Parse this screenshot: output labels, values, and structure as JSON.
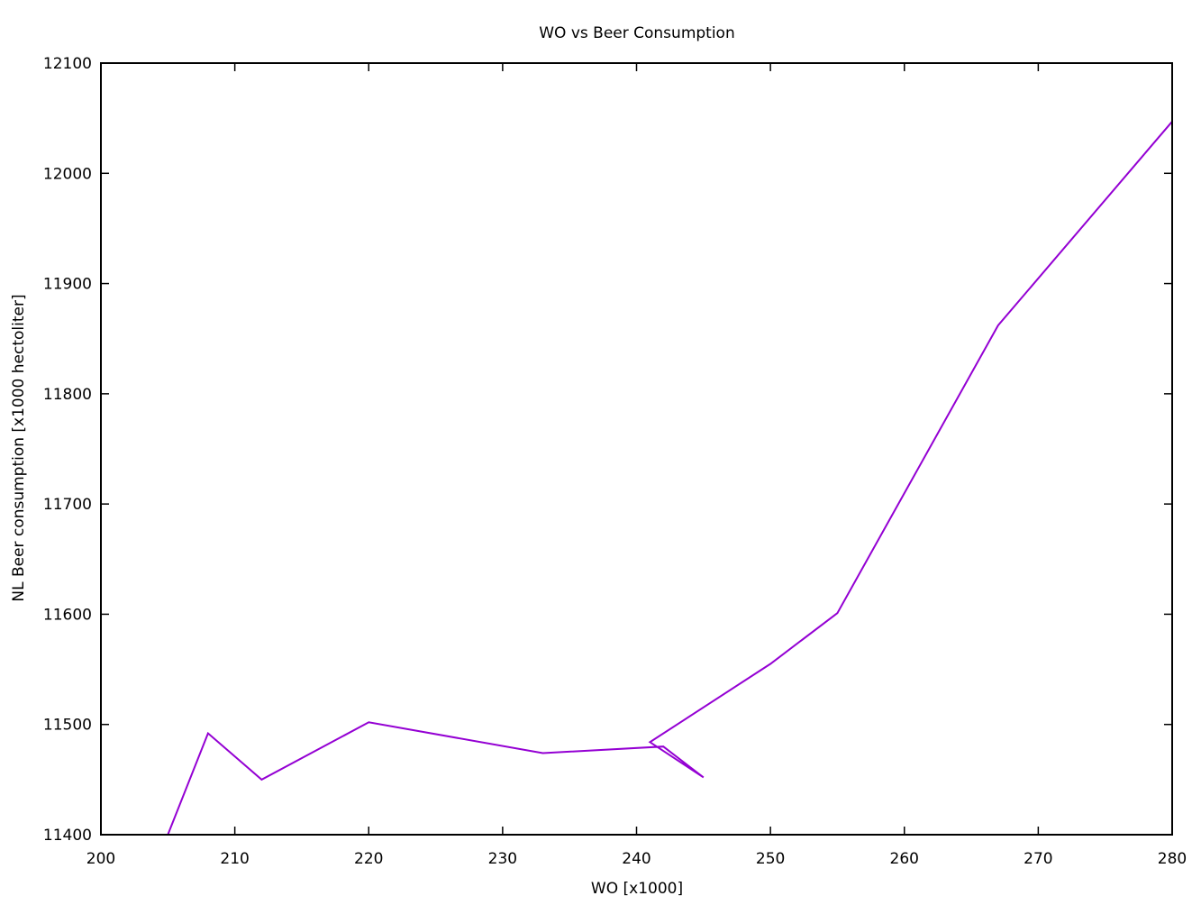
{
  "chart_data": {
    "type": "line",
    "title": "WO vs Beer Consumption",
    "xlabel": "WO [x1000]",
    "ylabel": "NL Beer consumption [x1000 hectoliter]",
    "xlim": [
      200,
      280
    ],
    "ylim": [
      11400,
      12100
    ],
    "xticks": [
      200,
      210,
      220,
      230,
      240,
      250,
      260,
      270,
      280
    ],
    "yticks": [
      11400,
      11500,
      11600,
      11700,
      11800,
      11900,
      12000,
      12100
    ],
    "xtick_labels": [
      "200",
      "210",
      "220",
      "230",
      "240",
      "250",
      "260",
      "270",
      "280"
    ],
    "ytick_labels": [
      "11400",
      "11500",
      "11600",
      "11700",
      "11800",
      "11900",
      "12000",
      "12100"
    ],
    "grid": false,
    "series": [
      {
        "color": "#9400d3",
        "points": [
          [
            205,
            11400
          ],
          [
            208,
            11492
          ],
          [
            212,
            11450
          ],
          [
            220,
            11502
          ],
          [
            233,
            11474
          ],
          [
            242,
            11480
          ],
          [
            245,
            11452
          ],
          [
            241,
            11484
          ],
          [
            250,
            11555
          ],
          [
            255,
            11601
          ],
          [
            267,
            11862
          ],
          [
            280,
            12047
          ]
        ]
      }
    ]
  }
}
